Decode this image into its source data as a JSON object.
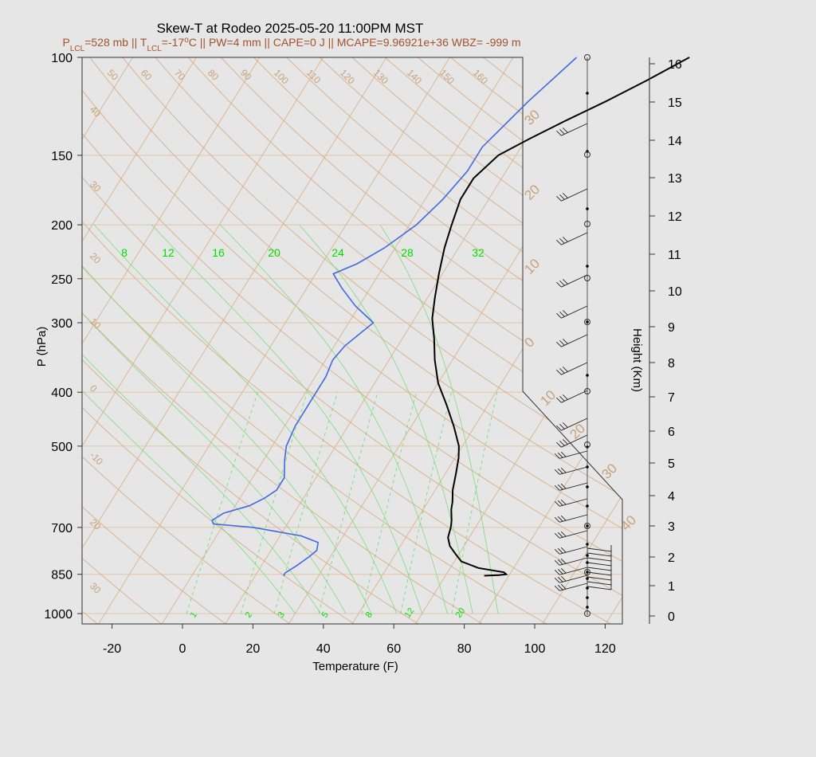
{
  "chart_data": {
    "type": "line",
    "title": "Skew-T at Rodeo 2025-05-20 11:00PM MST",
    "subtitle": {
      "p_lcl_label": "P",
      "p_lcl_sub": "LCL",
      "p_lcl_value": "=528 mb || T",
      "t_lcl_sub": "LCL",
      "t_lcl_value": "=-17",
      "deg_sup": "o",
      "rest": "C || PW=4 mm || CAPE=0 J || MCAPE=9.96921e+36 WBZ= -999 m"
    },
    "xlabel": "Temperature (F)",
    "ylabel": "P (hPa)",
    "y2label": "Height (Km)",
    "x_ticks": [
      "-20",
      "0",
      "20",
      "40",
      "60",
      "80",
      "100",
      "120"
    ],
    "x_tick_values": [
      -20,
      0,
      20,
      40,
      60,
      80,
      100,
      120
    ],
    "p_ticks": [
      "100",
      "150",
      "200",
      "250",
      "300",
      "400",
      "500",
      "700",
      "850",
      "1000"
    ],
    "p_tick_values": [
      100,
      150,
      200,
      250,
      300,
      400,
      500,
      700,
      850,
      1000
    ],
    "height_ticks": [
      "0",
      "1",
      "2",
      "3",
      "4",
      "5",
      "6",
      "7",
      "8",
      "9",
      "10",
      "11",
      "12",
      "13",
      "14",
      "15",
      "16"
    ],
    "isotherm_labels_top": [
      "50",
      "60",
      "70",
      "80",
      "90",
      "100",
      "110",
      "120",
      "130",
      "140",
      "150",
      "160"
    ],
    "isotherm_labels_left": [
      "40",
      "30",
      "20",
      "10",
      "0",
      "-10",
      "20",
      "30"
    ],
    "isotherm_labels_right": [
      "30",
      "20",
      "10",
      "0",
      "10",
      "20",
      "30",
      "40"
    ],
    "mixing_ratio_top_labels": [
      "8",
      "12",
      "16",
      "20",
      "24",
      "28",
      "32"
    ],
    "mixing_ratio_bottom_labels": [
      "1",
      "2",
      "3",
      "5",
      "8",
      "12",
      "20"
    ],
    "series": [
      {
        "name": "",
        "color": "#000000",
        "points": [
          [
            79,
            855
          ],
          [
            83,
            853
          ],
          [
            85,
            850
          ],
          [
            84,
            843
          ],
          [
            76,
            828
          ],
          [
            70,
            806
          ],
          [
            67,
            781
          ],
          [
            64,
            756
          ],
          [
            62,
            730
          ],
          [
            61,
            700
          ],
          [
            60,
            680
          ],
          [
            58,
            650
          ],
          [
            57,
            630
          ],
          [
            55,
            600
          ],
          [
            53,
            560
          ],
          [
            51,
            525
          ],
          [
            49,
            500
          ],
          [
            44,
            460
          ],
          [
            38,
            420
          ],
          [
            32,
            385
          ],
          [
            27,
            350
          ],
          [
            23,
            320
          ],
          [
            19,
            295
          ],
          [
            16,
            270
          ],
          [
            13,
            245
          ],
          [
            10,
            220
          ],
          [
            8,
            200
          ],
          [
            6,
            180
          ],
          [
            6,
            165
          ],
          [
            9,
            150
          ],
          [
            15,
            140
          ],
          [
            22,
            130
          ],
          [
            30,
            120
          ],
          [
            38,
            110
          ],
          [
            46,
            100
          ]
        ]
      },
      {
        "name": "",
        "color": "#4169e1",
        "points": [
          [
            22,
            855
          ],
          [
            22,
            845
          ],
          [
            24,
            820
          ],
          [
            26,
            790
          ],
          [
            27,
            770
          ],
          [
            26,
            745
          ],
          [
            20,
            725
          ],
          [
            5,
            700
          ],
          [
            -7,
            690
          ],
          [
            -8,
            680
          ],
          [
            -6,
            660
          ],
          [
            0,
            640
          ],
          [
            3,
            620
          ],
          [
            5,
            600
          ],
          [
            5,
            570
          ],
          [
            2,
            530
          ],
          [
            0,
            500
          ],
          [
            -1,
            460
          ],
          [
            -1,
            430
          ],
          [
            -1,
            400
          ],
          [
            -1,
            375
          ],
          [
            -2,
            350
          ],
          [
            -1,
            330
          ],
          [
            3,
            300
          ],
          [
            -5,
            280
          ],
          [
            -12,
            260
          ],
          [
            -17,
            245
          ],
          [
            -12,
            235
          ],
          [
            -7,
            220
          ],
          [
            -2,
            200
          ],
          [
            1,
            180
          ],
          [
            3,
            160
          ],
          [
            3,
            145
          ],
          [
            8,
            120
          ],
          [
            14,
            100
          ]
        ]
      }
    ],
    "wind_barbs": [],
    "grid": true
  }
}
